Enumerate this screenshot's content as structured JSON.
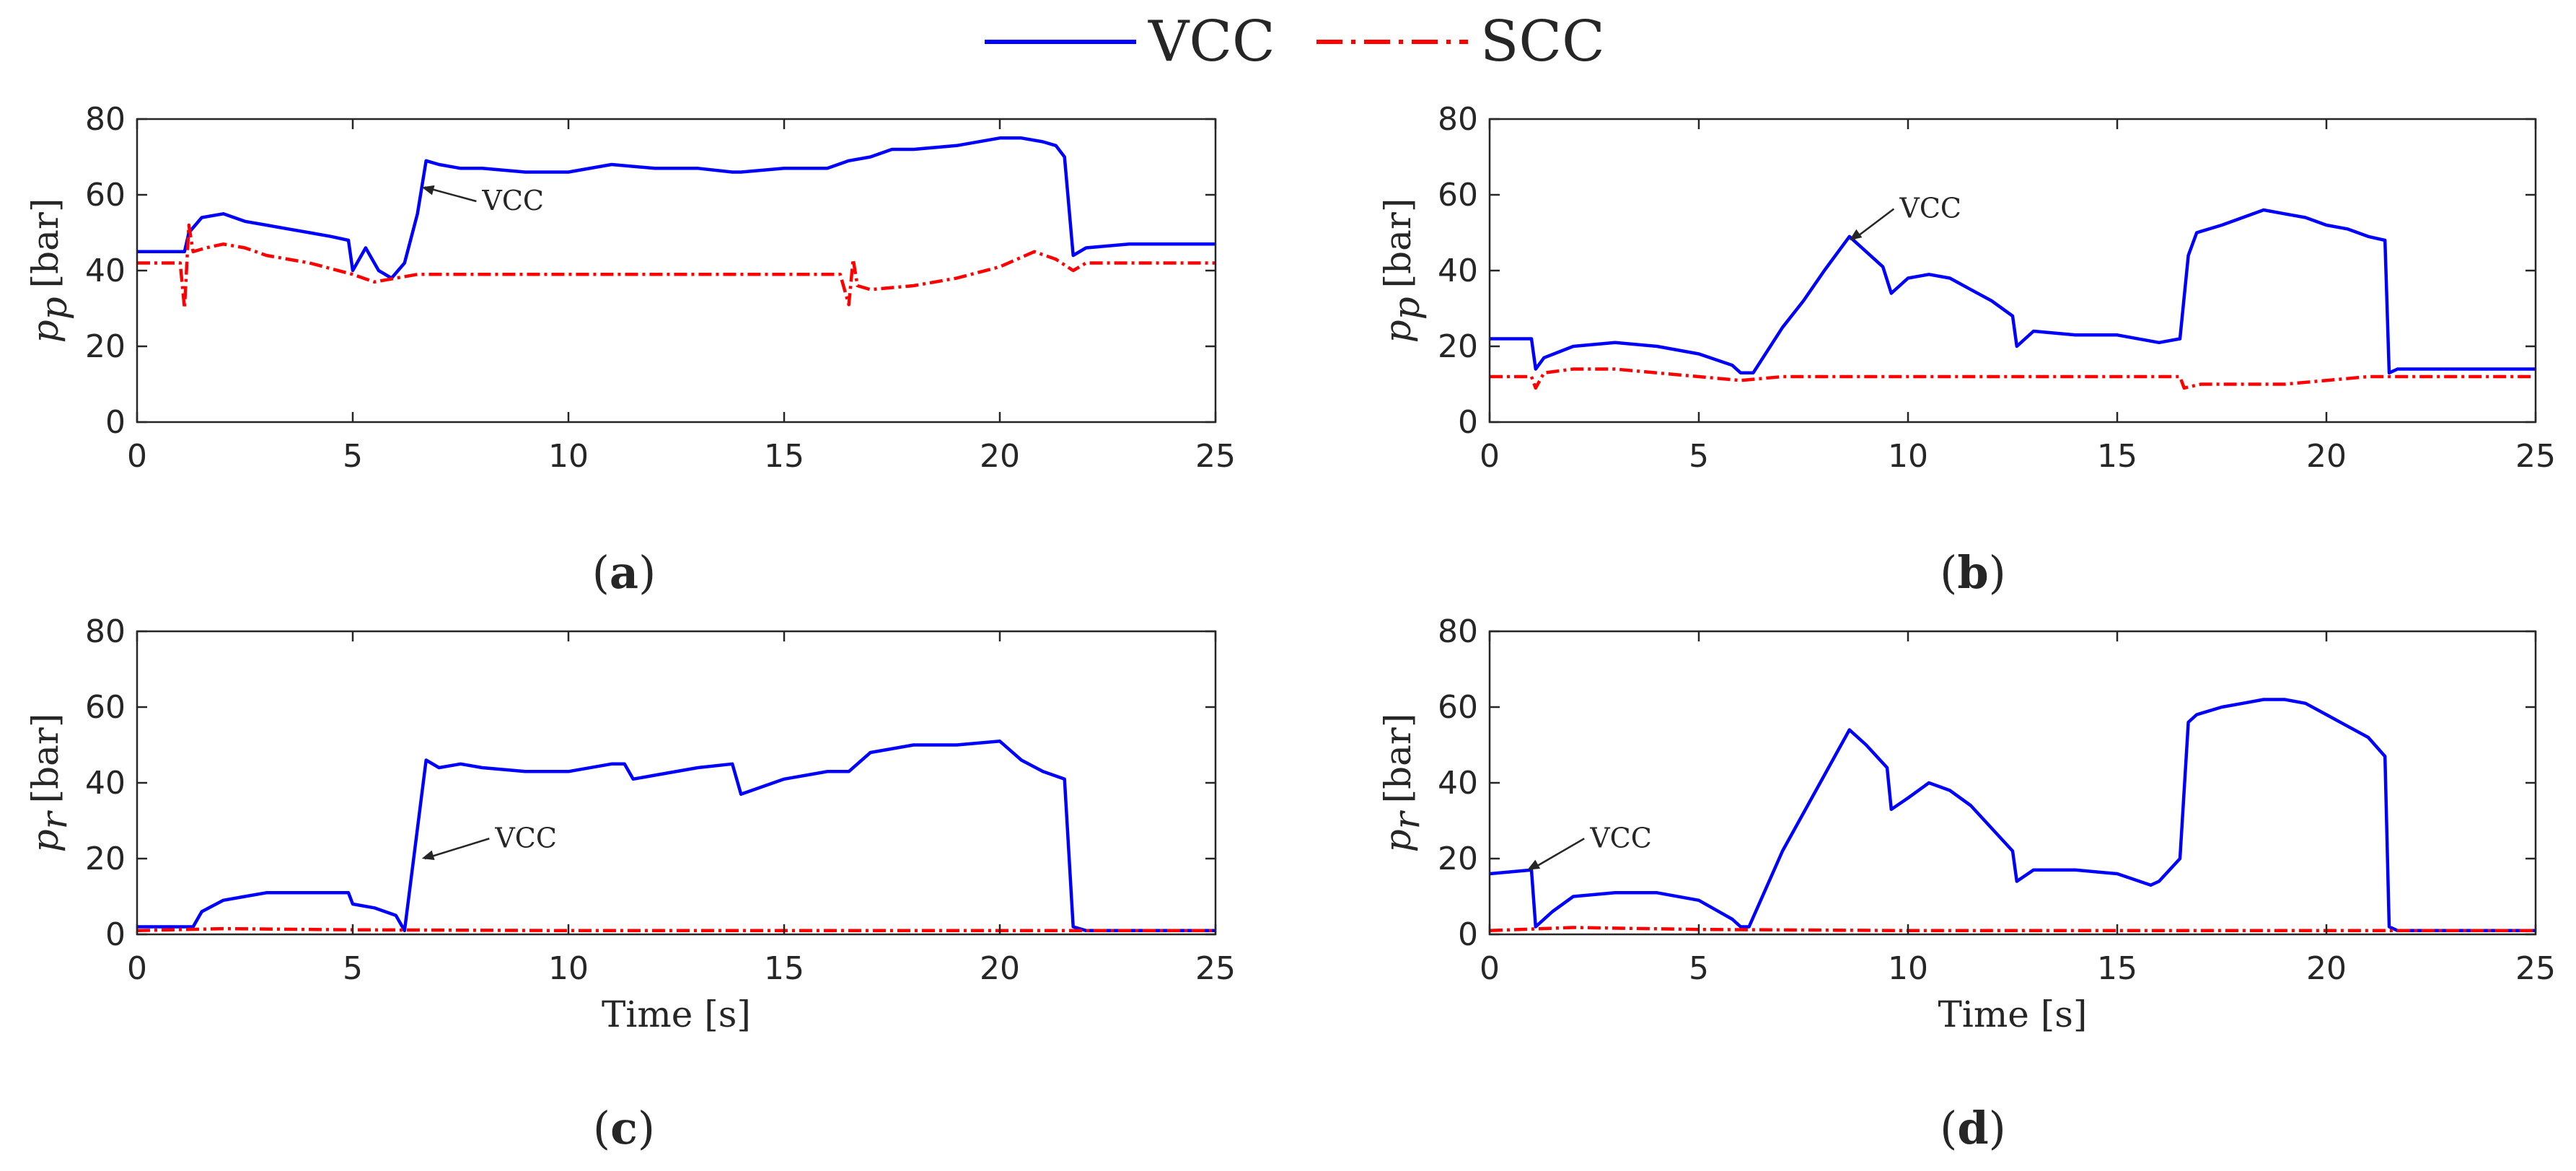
{
  "legend": {
    "entries": [
      {
        "name": "VCC",
        "color": "#0000ff",
        "style": "solid"
      },
      {
        "name": "SCC",
        "color": "#ff0000",
        "style": "dash-dot"
      }
    ]
  },
  "chart_data": [
    {
      "type": "line",
      "panel_label": [
        "(",
        "a",
        ")"
      ],
      "ylabel": {
        "symbol": "p",
        "subscript": "p",
        "unit": "[bar]"
      },
      "xlabel": "",
      "xlim": [
        0,
        25
      ],
      "ylim": [
        0,
        80
      ],
      "xticks": [
        0,
        5,
        10,
        15,
        20,
        25
      ],
      "yticks": [
        0,
        20,
        40,
        60,
        80
      ],
      "annotation": {
        "text": "VCC",
        "point": [
          6.6,
          62
        ],
        "text_at": [
          8.0,
          56
        ]
      },
      "series": [
        {
          "name": "VCC",
          "color": "#0000ff",
          "style": "solid",
          "x": [
            0,
            1.1,
            1.2,
            1.5,
            2.0,
            2.5,
            3.0,
            3.5,
            4.0,
            4.5,
            4.9,
            5.0,
            5.3,
            5.6,
            5.9,
            6.2,
            6.5,
            6.7,
            7.0,
            7.5,
            8.0,
            9.0,
            10.0,
            11.0,
            12.0,
            13.0,
            13.8,
            14.0,
            15.0,
            16.0,
            16.5,
            17.0,
            17.5,
            18.0,
            19.0,
            20.0,
            20.5,
            21.0,
            21.3,
            21.5,
            21.7,
            22.0,
            23.0,
            25.0
          ],
          "y": [
            45,
            45,
            50,
            54,
            55,
            53,
            52,
            51,
            50,
            49,
            48,
            40,
            46,
            40,
            38,
            42,
            55,
            69,
            68,
            67,
            67,
            66,
            66,
            68,
            67,
            67,
            66,
            66,
            67,
            67,
            69,
            70,
            72,
            72,
            73,
            75,
            75,
            74,
            73,
            70,
            44,
            46,
            47,
            47
          ]
        },
        {
          "name": "SCC",
          "color": "#ff0000",
          "style": "dash-dot",
          "x": [
            0,
            1.0,
            1.1,
            1.2,
            1.3,
            1.6,
            2.0,
            2.5,
            3.0,
            4.0,
            5.0,
            5.5,
            6.0,
            6.5,
            7.0,
            10.0,
            15.0,
            16.3,
            16.5,
            16.6,
            16.7,
            17.0,
            18.0,
            19.0,
            20.0,
            20.8,
            21.3,
            21.7,
            22.0,
            25.0
          ],
          "y": [
            42,
            42,
            30,
            52,
            45,
            46,
            47,
            46,
            44,
            42,
            39,
            37,
            38,
            39,
            39,
            39,
            39,
            39,
            31,
            43,
            36,
            35,
            36,
            38,
            41,
            45,
            43,
            40,
            42,
            42
          ]
        }
      ]
    },
    {
      "type": "line",
      "panel_label": [
        "(",
        "b",
        ")"
      ],
      "ylabel": {
        "symbol": "p",
        "subscript": "p",
        "unit": "[bar]"
      },
      "xlabel": "",
      "xlim": [
        0,
        25
      ],
      "ylim": [
        0,
        80
      ],
      "xticks": [
        0,
        5,
        10,
        15,
        20,
        25
      ],
      "yticks": [
        0,
        20,
        40,
        60,
        80
      ],
      "annotation": {
        "text": "VCC",
        "point": [
          8.6,
          48
        ],
        "text_at": [
          9.8,
          54
        ]
      },
      "series": [
        {
          "name": "VCC",
          "color": "#0000ff",
          "style": "solid",
          "x": [
            0,
            1.0,
            1.1,
            1.3,
            2.0,
            3.0,
            4.0,
            5.0,
            5.8,
            6.0,
            6.3,
            7.0,
            7.5,
            8.0,
            8.6,
            9.0,
            9.4,
            9.6,
            10.0,
            10.5,
            11.0,
            11.5,
            12.0,
            12.5,
            12.6,
            13.0,
            14.0,
            15.0,
            16.0,
            16.5,
            16.7,
            16.9,
            17.5,
            18.0,
            18.5,
            19.0,
            19.5,
            20.0,
            20.5,
            21.0,
            21.4,
            21.5,
            21.7,
            22.0,
            23.0,
            25.0
          ],
          "y": [
            22,
            22,
            14,
            17,
            20,
            21,
            20,
            18,
            15,
            13,
            13,
            25,
            32,
            40,
            49,
            45,
            41,
            34,
            38,
            39,
            38,
            35,
            32,
            28,
            20,
            24,
            23,
            23,
            21,
            22,
            44,
            50,
            52,
            54,
            56,
            55,
            54,
            52,
            51,
            49,
            48,
            13,
            14,
            14,
            14,
            14
          ]
        },
        {
          "name": "SCC",
          "color": "#ff0000",
          "style": "dash-dot",
          "x": [
            0,
            1.0,
            1.1,
            1.3,
            2.0,
            3.0,
            4.0,
            5.0,
            6.0,
            7.0,
            10.0,
            15.0,
            16.5,
            16.6,
            17.0,
            18.0,
            19.0,
            20.0,
            21.0,
            21.5,
            22.0,
            25.0
          ],
          "y": [
            12,
            12,
            9,
            13,
            14,
            14,
            13,
            12,
            11,
            12,
            12,
            12,
            12,
            9,
            10,
            10,
            10,
            11,
            12,
            12,
            12,
            12
          ]
        }
      ]
    },
    {
      "type": "line",
      "panel_label": [
        "(",
        "c",
        ")"
      ],
      "ylabel": {
        "symbol": "p",
        "subscript": "r",
        "unit": "[bar]"
      },
      "xlabel": "Time [s]",
      "xlim": [
        0,
        25
      ],
      "ylim": [
        0,
        80
      ],
      "xticks": [
        0,
        5,
        10,
        15,
        20,
        25
      ],
      "yticks": [
        0,
        20,
        40,
        60,
        80
      ],
      "annotation": {
        "text": "VCC",
        "point": [
          6.6,
          20
        ],
        "text_at": [
          8.3,
          23
        ]
      },
      "series": [
        {
          "name": "VCC",
          "color": "#0000ff",
          "style": "solid",
          "x": [
            0,
            1.3,
            1.5,
            2.0,
            2.5,
            3.0,
            4.0,
            4.9,
            5.0,
            5.5,
            6.0,
            6.2,
            6.7,
            7.0,
            7.5,
            8.0,
            9.0,
            10.0,
            11.0,
            11.3,
            11.5,
            12.0,
            13.0,
            13.8,
            14.0,
            15.0,
            16.0,
            16.5,
            17.0,
            18.0,
            19.0,
            20.0,
            20.5,
            21.0,
            21.5,
            21.7,
            22.0,
            23.0,
            25.0
          ],
          "y": [
            2,
            2,
            6,
            9,
            10,
            11,
            11,
            11,
            8,
            7,
            5,
            1,
            46,
            44,
            45,
            44,
            43,
            43,
            45,
            45,
            41,
            42,
            44,
            45,
            37,
            41,
            43,
            43,
            48,
            50,
            50,
            51,
            46,
            43,
            41,
            2,
            1,
            1,
            1
          ]
        },
        {
          "name": "SCC",
          "color": "#ff0000",
          "style": "dash-dot",
          "x": [
            0,
            2.0,
            5.0,
            10.0,
            15.0,
            20.0,
            25.0
          ],
          "y": [
            1,
            1.5,
            1.2,
            1,
            1,
            1,
            1
          ]
        }
      ]
    },
    {
      "type": "line",
      "panel_label": [
        "(",
        "d",
        ")"
      ],
      "ylabel": {
        "symbol": "p",
        "subscript": "r",
        "unit": "[bar]"
      },
      "xlabel": "Time [s]",
      "xlim": [
        0,
        25
      ],
      "ylim": [
        0,
        80
      ],
      "xticks": [
        0,
        5,
        10,
        15,
        20,
        25
      ],
      "yticks": [
        0,
        20,
        40,
        60,
        80
      ],
      "annotation": {
        "text": "VCC",
        "point": [
          0.9,
          17
        ],
        "text_at": [
          2.4,
          23
        ]
      },
      "series": [
        {
          "name": "VCC",
          "color": "#0000ff",
          "style": "solid",
          "x": [
            0,
            1.0,
            1.1,
            1.5,
            2.0,
            3.0,
            4.0,
            5.0,
            5.8,
            6.0,
            6.2,
            7.0,
            8.0,
            8.6,
            9.0,
            9.5,
            9.6,
            10.0,
            10.5,
            11.0,
            11.5,
            12.0,
            12.5,
            12.6,
            13.0,
            14.0,
            15.0,
            15.8,
            16.0,
            16.5,
            16.7,
            16.9,
            17.5,
            18.0,
            18.5,
            19.0,
            19.5,
            20.0,
            20.5,
            21.0,
            21.4,
            21.5,
            21.7,
            22.0,
            25.0
          ],
          "y": [
            16,
            17,
            2,
            6,
            10,
            11,
            11,
            9,
            4,
            2,
            2,
            22,
            42,
            54,
            50,
            44,
            33,
            36,
            40,
            38,
            34,
            28,
            22,
            14,
            17,
            17,
            16,
            13,
            14,
            20,
            56,
            58,
            60,
            61,
            62,
            62,
            61,
            58,
            55,
            52,
            47,
            2,
            1,
            1,
            1
          ]
        },
        {
          "name": "SCC",
          "color": "#ff0000",
          "style": "dash-dot",
          "x": [
            0,
            2.0,
            5.0,
            10.0,
            15.0,
            20.0,
            25.0
          ],
          "y": [
            1,
            1.8,
            1.3,
            1,
            1,
            1,
            1
          ]
        }
      ]
    }
  ]
}
